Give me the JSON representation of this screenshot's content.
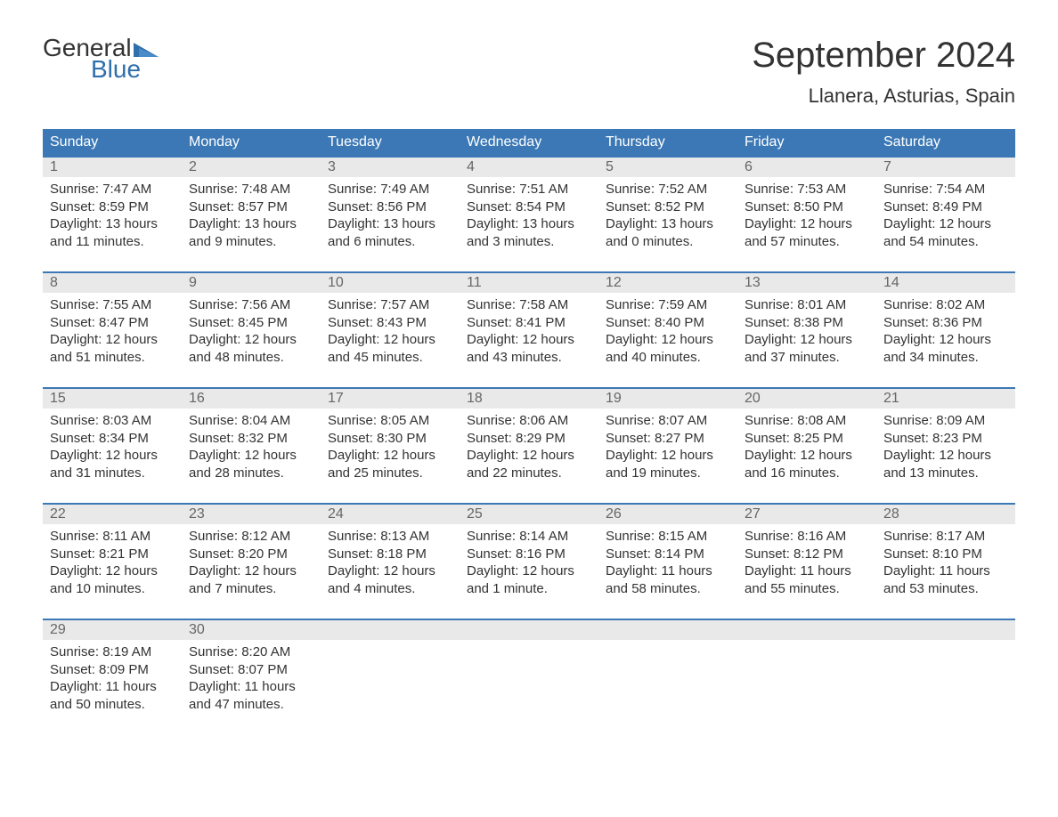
{
  "logo": {
    "general": "General",
    "blue": "Blue",
    "flag_color": "#2f6fad"
  },
  "title": "September 2024",
  "location": "Llanera, Asturias, Spain",
  "colors": {
    "header_bg": "#3b78b5",
    "header_text": "#ffffff",
    "number_row_bg": "#e9e9e9",
    "week_border": "#3b78b5",
    "day_number": "#666666",
    "body_text": "#333333",
    "page_bg": "#ffffff"
  },
  "typography": {
    "title_fontsize": 40,
    "location_fontsize": 22,
    "dayheader_fontsize": 16,
    "daynumber_fontsize": 16,
    "body_fontsize": 15,
    "logo_fontsize": 28
  },
  "day_names": [
    "Sunday",
    "Monday",
    "Tuesday",
    "Wednesday",
    "Thursday",
    "Friday",
    "Saturday"
  ],
  "weeks": [
    [
      {
        "n": "1",
        "sunrise": "Sunrise: 7:47 AM",
        "sunset": "Sunset: 8:59 PM",
        "daylight": "Daylight: 13 hours and 11 minutes."
      },
      {
        "n": "2",
        "sunrise": "Sunrise: 7:48 AM",
        "sunset": "Sunset: 8:57 PM",
        "daylight": "Daylight: 13 hours and 9 minutes."
      },
      {
        "n": "3",
        "sunrise": "Sunrise: 7:49 AM",
        "sunset": "Sunset: 8:56 PM",
        "daylight": "Daylight: 13 hours and 6 minutes."
      },
      {
        "n": "4",
        "sunrise": "Sunrise: 7:51 AM",
        "sunset": "Sunset: 8:54 PM",
        "daylight": "Daylight: 13 hours and 3 minutes."
      },
      {
        "n": "5",
        "sunrise": "Sunrise: 7:52 AM",
        "sunset": "Sunset: 8:52 PM",
        "daylight": "Daylight: 13 hours and 0 minutes."
      },
      {
        "n": "6",
        "sunrise": "Sunrise: 7:53 AM",
        "sunset": "Sunset: 8:50 PM",
        "daylight": "Daylight: 12 hours and 57 minutes."
      },
      {
        "n": "7",
        "sunrise": "Sunrise: 7:54 AM",
        "sunset": "Sunset: 8:49 PM",
        "daylight": "Daylight: 12 hours and 54 minutes."
      }
    ],
    [
      {
        "n": "8",
        "sunrise": "Sunrise: 7:55 AM",
        "sunset": "Sunset: 8:47 PM",
        "daylight": "Daylight: 12 hours and 51 minutes."
      },
      {
        "n": "9",
        "sunrise": "Sunrise: 7:56 AM",
        "sunset": "Sunset: 8:45 PM",
        "daylight": "Daylight: 12 hours and 48 minutes."
      },
      {
        "n": "10",
        "sunrise": "Sunrise: 7:57 AM",
        "sunset": "Sunset: 8:43 PM",
        "daylight": "Daylight: 12 hours and 45 minutes."
      },
      {
        "n": "11",
        "sunrise": "Sunrise: 7:58 AM",
        "sunset": "Sunset: 8:41 PM",
        "daylight": "Daylight: 12 hours and 43 minutes."
      },
      {
        "n": "12",
        "sunrise": "Sunrise: 7:59 AM",
        "sunset": "Sunset: 8:40 PM",
        "daylight": "Daylight: 12 hours and 40 minutes."
      },
      {
        "n": "13",
        "sunrise": "Sunrise: 8:01 AM",
        "sunset": "Sunset: 8:38 PM",
        "daylight": "Daylight: 12 hours and 37 minutes."
      },
      {
        "n": "14",
        "sunrise": "Sunrise: 8:02 AM",
        "sunset": "Sunset: 8:36 PM",
        "daylight": "Daylight: 12 hours and 34 minutes."
      }
    ],
    [
      {
        "n": "15",
        "sunrise": "Sunrise: 8:03 AM",
        "sunset": "Sunset: 8:34 PM",
        "daylight": "Daylight: 12 hours and 31 minutes."
      },
      {
        "n": "16",
        "sunrise": "Sunrise: 8:04 AM",
        "sunset": "Sunset: 8:32 PM",
        "daylight": "Daylight: 12 hours and 28 minutes."
      },
      {
        "n": "17",
        "sunrise": "Sunrise: 8:05 AM",
        "sunset": "Sunset: 8:30 PM",
        "daylight": "Daylight: 12 hours and 25 minutes."
      },
      {
        "n": "18",
        "sunrise": "Sunrise: 8:06 AM",
        "sunset": "Sunset: 8:29 PM",
        "daylight": "Daylight: 12 hours and 22 minutes."
      },
      {
        "n": "19",
        "sunrise": "Sunrise: 8:07 AM",
        "sunset": "Sunset: 8:27 PM",
        "daylight": "Daylight: 12 hours and 19 minutes."
      },
      {
        "n": "20",
        "sunrise": "Sunrise: 8:08 AM",
        "sunset": "Sunset: 8:25 PM",
        "daylight": "Daylight: 12 hours and 16 minutes."
      },
      {
        "n": "21",
        "sunrise": "Sunrise: 8:09 AM",
        "sunset": "Sunset: 8:23 PM",
        "daylight": "Daylight: 12 hours and 13 minutes."
      }
    ],
    [
      {
        "n": "22",
        "sunrise": "Sunrise: 8:11 AM",
        "sunset": "Sunset: 8:21 PM",
        "daylight": "Daylight: 12 hours and 10 minutes."
      },
      {
        "n": "23",
        "sunrise": "Sunrise: 8:12 AM",
        "sunset": "Sunset: 8:20 PM",
        "daylight": "Daylight: 12 hours and 7 minutes."
      },
      {
        "n": "24",
        "sunrise": "Sunrise: 8:13 AM",
        "sunset": "Sunset: 8:18 PM",
        "daylight": "Daylight: 12 hours and 4 minutes."
      },
      {
        "n": "25",
        "sunrise": "Sunrise: 8:14 AM",
        "sunset": "Sunset: 8:16 PM",
        "daylight": "Daylight: 12 hours and 1 minute."
      },
      {
        "n": "26",
        "sunrise": "Sunrise: 8:15 AM",
        "sunset": "Sunset: 8:14 PM",
        "daylight": "Daylight: 11 hours and 58 minutes."
      },
      {
        "n": "27",
        "sunrise": "Sunrise: 8:16 AM",
        "sunset": "Sunset: 8:12 PM",
        "daylight": "Daylight: 11 hours and 55 minutes."
      },
      {
        "n": "28",
        "sunrise": "Sunrise: 8:17 AM",
        "sunset": "Sunset: 8:10 PM",
        "daylight": "Daylight: 11 hours and 53 minutes."
      }
    ],
    [
      {
        "n": "29",
        "sunrise": "Sunrise: 8:19 AM",
        "sunset": "Sunset: 8:09 PM",
        "daylight": "Daylight: 11 hours and 50 minutes."
      },
      {
        "n": "30",
        "sunrise": "Sunrise: 8:20 AM",
        "sunset": "Sunset: 8:07 PM",
        "daylight": "Daylight: 11 hours and 47 minutes."
      },
      {
        "empty": true
      },
      {
        "empty": true
      },
      {
        "empty": true
      },
      {
        "empty": true
      },
      {
        "empty": true
      }
    ]
  ]
}
